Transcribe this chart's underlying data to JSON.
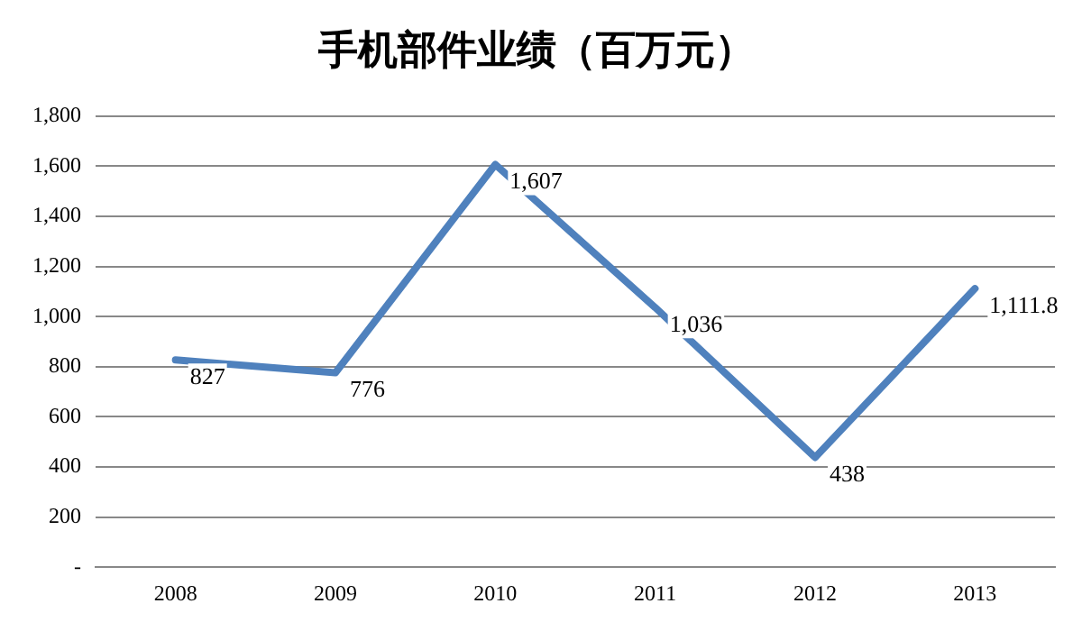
{
  "chart_data": {
    "type": "line",
    "title": "手机部件业绩（百万元）",
    "categories": [
      "2008",
      "2009",
      "2010",
      "2011",
      "2012",
      "2013"
    ],
    "series": [
      {
        "color": "#4f81bd",
        "values": [
          827,
          776,
          1607,
          1036,
          438,
          1111.8
        ],
        "value_labels": [
          "827",
          "776",
          "1,607",
          "1,036",
          "438",
          "1,111.8"
        ]
      }
    ],
    "ylim": [
      0,
      1800
    ],
    "yticks": [
      {
        "value": 0,
        "label": "-"
      },
      {
        "value": 200,
        "label": "200"
      },
      {
        "value": 400,
        "label": "400"
      },
      {
        "value": 600,
        "label": "600"
      },
      {
        "value": 800,
        "label": "800"
      },
      {
        "value": 1000,
        "label": "1,000"
      },
      {
        "value": 1200,
        "label": "1,200"
      },
      {
        "value": 1400,
        "label": "1,400"
      },
      {
        "value": 1600,
        "label": "1,600"
      },
      {
        "value": 1800,
        "label": "1,800"
      }
    ],
    "grid": "y",
    "legend": false,
    "marker": "none",
    "line_style": "solid"
  }
}
